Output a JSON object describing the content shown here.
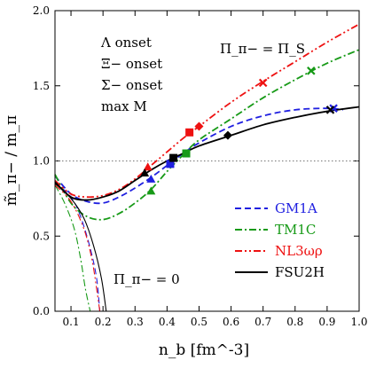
{
  "chart_data": {
    "type": "line",
    "xlabel": "n_b [fm^-3]",
    "ylabel": "m̃_π− / m_π",
    "xlim": [
      0.05,
      1.0
    ],
    "ylim": [
      0.0,
      2.0
    ],
    "x_ticks": [
      0.1,
      0.2,
      0.3,
      0.4,
      0.5,
      0.6,
      0.7,
      0.8,
      0.9,
      1.0
    ],
    "x_tick_labels": [
      "0.1",
      "0.2",
      "0.3",
      "0.4",
      "0.5",
      "0.6",
      "0.7",
      "0.8",
      "0.9",
      "1.0"
    ],
    "y_ticks": [
      0.0,
      0.5,
      1.0,
      1.5,
      2.0
    ],
    "y_tick_labels": [
      "0.0",
      "0.5",
      "1.0",
      "1.5",
      "2.0"
    ],
    "reference_line": {
      "y": 1.0,
      "style": "dotted",
      "color": "#888888"
    },
    "annotations": {
      "upper": "Π_π− = Π_S",
      "lower": "Π_π− = 0"
    },
    "marker_legend": [
      {
        "marker": "triangle",
        "label": "Λ onset"
      },
      {
        "marker": "square",
        "label": "Ξ− onset"
      },
      {
        "marker": "diamond",
        "label": "Σ− onset"
      },
      {
        "marker": "cross",
        "label": "max M"
      }
    ],
    "series": [
      {
        "name": "GM1A",
        "color": "#1f1fe0",
        "dash": "7,4",
        "upper": [
          [
            0.05,
            0.9
          ],
          [
            0.1,
            0.78
          ],
          [
            0.15,
            0.73
          ],
          [
            0.2,
            0.72
          ],
          [
            0.25,
            0.76
          ],
          [
            0.3,
            0.82
          ],
          [
            0.35,
            0.89
          ],
          [
            0.4,
            0.97
          ],
          [
            0.45,
            1.05
          ],
          [
            0.5,
            1.12
          ],
          [
            0.6,
            1.23
          ],
          [
            0.7,
            1.3
          ],
          [
            0.8,
            1.34
          ],
          [
            0.9,
            1.35
          ],
          [
            0.95,
            1.34
          ]
        ],
        "lower": [
          [
            0.05,
            0.86
          ],
          [
            0.1,
            0.76
          ],
          [
            0.13,
            0.63
          ],
          [
            0.16,
            0.42
          ],
          [
            0.18,
            0.22
          ],
          [
            0.19,
            0.0
          ]
        ],
        "markers": [
          {
            "type": "triangle",
            "x": 0.35,
            "y": 0.88
          },
          {
            "type": "square",
            "x": 0.41,
            "y": 0.98
          },
          {
            "type": "cross",
            "x": 0.92,
            "y": 1.35
          }
        ]
      },
      {
        "name": "TM1C",
        "color": "#179a17",
        "dash": "8,3,2,3",
        "upper": [
          [
            0.05,
            0.91
          ],
          [
            0.1,
            0.72
          ],
          [
            0.15,
            0.63
          ],
          [
            0.2,
            0.61
          ],
          [
            0.25,
            0.65
          ],
          [
            0.3,
            0.72
          ],
          [
            0.35,
            0.81
          ],
          [
            0.4,
            0.93
          ],
          [
            0.45,
            1.04
          ],
          [
            0.5,
            1.14
          ],
          [
            0.6,
            1.28
          ],
          [
            0.7,
            1.42
          ],
          [
            0.8,
            1.54
          ],
          [
            0.9,
            1.65
          ],
          [
            1.0,
            1.74
          ]
        ],
        "lower": [
          [
            0.05,
            0.84
          ],
          [
            0.08,
            0.72
          ],
          [
            0.11,
            0.55
          ],
          [
            0.13,
            0.35
          ],
          [
            0.145,
            0.15
          ],
          [
            0.16,
            0.0
          ]
        ],
        "markers": [
          {
            "type": "triangle",
            "x": 0.35,
            "y": 0.8
          },
          {
            "type": "square",
            "x": 0.46,
            "y": 1.05
          },
          {
            "type": "cross",
            "x": 0.85,
            "y": 1.6
          }
        ]
      },
      {
        "name": "NL3ωρ",
        "color": "#ee1111",
        "dash": "8,3,2,3,2,3",
        "upper": [
          [
            0.05,
            0.87
          ],
          [
            0.1,
            0.78
          ],
          [
            0.15,
            0.76
          ],
          [
            0.2,
            0.77
          ],
          [
            0.25,
            0.81
          ],
          [
            0.3,
            0.88
          ],
          [
            0.35,
            0.97
          ],
          [
            0.4,
            1.06
          ],
          [
            0.45,
            1.15
          ],
          [
            0.5,
            1.23
          ],
          [
            0.6,
            1.39
          ],
          [
            0.7,
            1.53
          ],
          [
            0.8,
            1.66
          ],
          [
            0.9,
            1.79
          ],
          [
            1.0,
            1.91
          ]
        ],
        "lower": [
          [
            0.05,
            0.84
          ],
          [
            0.1,
            0.73
          ],
          [
            0.14,
            0.55
          ],
          [
            0.165,
            0.35
          ],
          [
            0.18,
            0.15
          ],
          [
            0.19,
            0.0
          ]
        ],
        "markers": [
          {
            "type": "triangle",
            "x": 0.34,
            "y": 0.96
          },
          {
            "type": "square",
            "x": 0.47,
            "y": 1.19
          },
          {
            "type": "diamond",
            "x": 0.5,
            "y": 1.23
          },
          {
            "type": "cross",
            "x": 0.7,
            "y": 1.52
          }
        ]
      },
      {
        "name": "FSU2H",
        "color": "#000000",
        "dash": "",
        "upper": [
          [
            0.05,
            0.86
          ],
          [
            0.1,
            0.76
          ],
          [
            0.15,
            0.74
          ],
          [
            0.2,
            0.76
          ],
          [
            0.25,
            0.8
          ],
          [
            0.3,
            0.87
          ],
          [
            0.35,
            0.94
          ],
          [
            0.4,
            1.0
          ],
          [
            0.45,
            1.05
          ],
          [
            0.5,
            1.1
          ],
          [
            0.6,
            1.17
          ],
          [
            0.7,
            1.24
          ],
          [
            0.8,
            1.29
          ],
          [
            0.9,
            1.33
          ],
          [
            1.0,
            1.36
          ]
        ],
        "lower": [
          [
            0.05,
            0.85
          ],
          [
            0.1,
            0.75
          ],
          [
            0.14,
            0.62
          ],
          [
            0.17,
            0.44
          ],
          [
            0.195,
            0.22
          ],
          [
            0.21,
            0.0
          ]
        ],
        "markers": [
          {
            "type": "triangle",
            "x": 0.33,
            "y": 0.92
          },
          {
            "type": "square",
            "x": 0.42,
            "y": 1.02
          },
          {
            "type": "diamond",
            "x": 0.59,
            "y": 1.17
          },
          {
            "type": "cross",
            "x": 0.91,
            "y": 1.34
          }
        ]
      }
    ]
  }
}
